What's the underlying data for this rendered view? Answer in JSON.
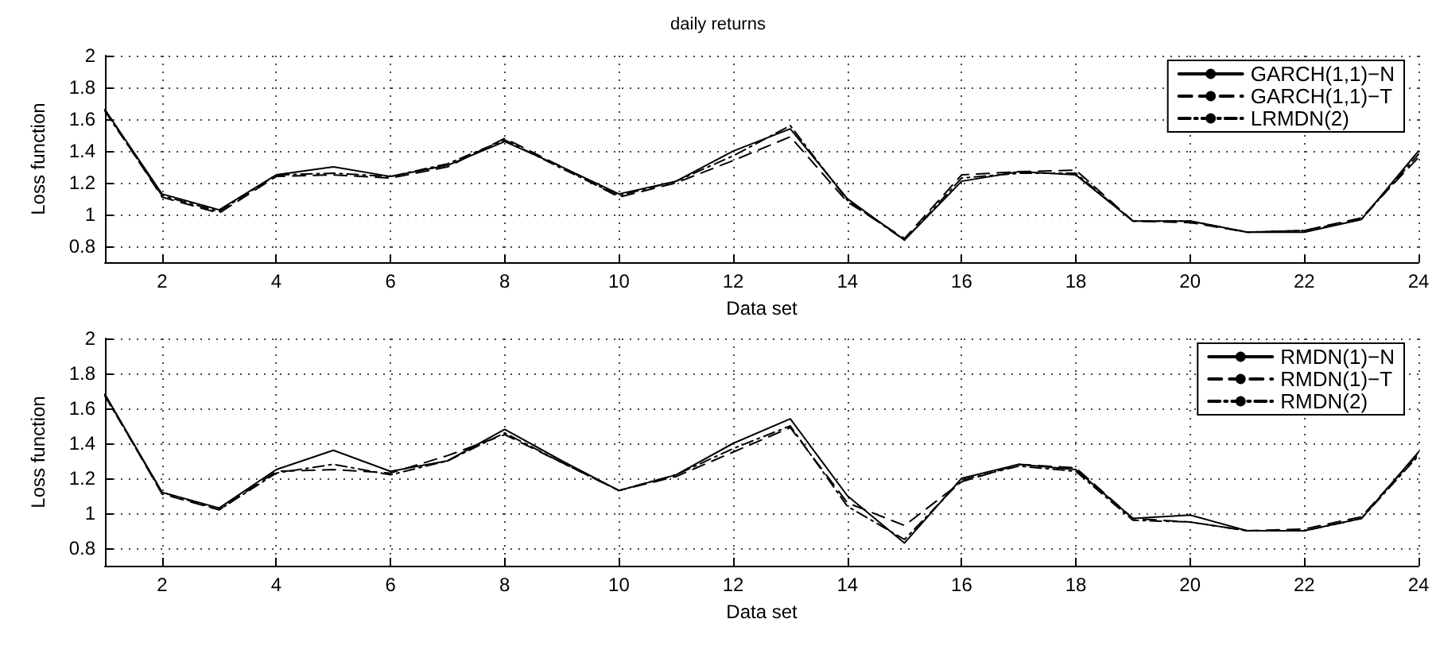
{
  "chart_data": [
    {
      "type": "line",
      "title": "daily returns",
      "xlabel": "Data set",
      "ylabel": "Loss function",
      "x": [
        1,
        2,
        3,
        4,
        5,
        6,
        7,
        8,
        9,
        10,
        11,
        12,
        13,
        14,
        15,
        16,
        17,
        18,
        19,
        20,
        21,
        22,
        23,
        24
      ],
      "xlim": [
        1,
        24
      ],
      "xticks": [
        2,
        4,
        6,
        8,
        10,
        12,
        14,
        16,
        18,
        20,
        22,
        24
      ],
      "ylim": [
        0.7,
        2
      ],
      "yticks": [
        0.8,
        1,
        1.2,
        1.4,
        1.6,
        1.8,
        2
      ],
      "grid": true,
      "legend": "top right",
      "marker": "none",
      "series": [
        {
          "name": "GARCH(1,1)−N",
          "color": "#000000",
          "line_style": "solid",
          "values": [
            1.66,
            1.13,
            1.03,
            1.25,
            1.3,
            1.24,
            1.31,
            1.46,
            1.3,
            1.13,
            1.21,
            1.4,
            1.54,
            1.1,
            0.84,
            1.21,
            1.27,
            1.25,
            0.96,
            0.96,
            0.89,
            0.89,
            0.97,
            1.4
          ]
        },
        {
          "name": "GARCH(1,1)−T",
          "color": "#000000",
          "line_style": "dashed",
          "values": [
            1.66,
            1.11,
            1.01,
            1.24,
            1.25,
            1.23,
            1.3,
            1.48,
            1.3,
            1.11,
            1.2,
            1.34,
            1.49,
            1.08,
            0.85,
            1.25,
            1.27,
            1.28,
            0.96,
            0.95,
            0.89,
            0.9,
            0.98,
            1.36
          ]
        },
        {
          "name": "LRMDN(2)",
          "color": "#000000",
          "line_style": "dotted",
          "values": [
            1.65,
            1.12,
            1.02,
            1.25,
            1.26,
            1.24,
            1.32,
            1.47,
            1.29,
            1.12,
            1.21,
            1.37,
            1.56,
            1.09,
            0.84,
            1.23,
            1.26,
            1.26,
            0.96,
            0.96,
            0.89,
            0.9,
            0.97,
            1.38
          ]
        }
      ]
    },
    {
      "type": "line",
      "xlabel": "Data set",
      "ylabel": "Loss function",
      "x": [
        1,
        2,
        3,
        4,
        5,
        6,
        7,
        8,
        9,
        10,
        11,
        12,
        13,
        14,
        15,
        16,
        17,
        18,
        19,
        20,
        21,
        22,
        23,
        24
      ],
      "xlim": [
        1,
        24
      ],
      "xticks": [
        2,
        4,
        6,
        8,
        10,
        12,
        14,
        16,
        18,
        20,
        22,
        24
      ],
      "ylim": [
        0.7,
        2
      ],
      "yticks": [
        0.8,
        1,
        1.2,
        1.4,
        1.6,
        1.8,
        2
      ],
      "grid": true,
      "legend": "top right",
      "marker": "none",
      "series": [
        {
          "name": "RMDN(1)−N",
          "color": "#000000",
          "line_style": "solid",
          "values": [
            1.68,
            1.12,
            1.03,
            1.25,
            1.36,
            1.24,
            1.3,
            1.48,
            1.3,
            1.13,
            1.22,
            1.4,
            1.54,
            1.1,
            0.83,
            1.2,
            1.28,
            1.25,
            0.97,
            0.99,
            0.9,
            0.9,
            0.97,
            1.35
          ]
        },
        {
          "name": "RMDN(1)−T",
          "color": "#000000",
          "line_style": "dashed",
          "values": [
            1.68,
            1.11,
            1.02,
            1.24,
            1.25,
            1.23,
            1.33,
            1.45,
            1.29,
            1.13,
            1.21,
            1.35,
            1.49,
            1.06,
            0.93,
            1.18,
            1.28,
            1.26,
            0.97,
            0.95,
            0.9,
            0.91,
            0.98,
            1.34
          ]
        },
        {
          "name": "RMDN(2)",
          "color": "#000000",
          "line_style": "dotted",
          "values": [
            1.67,
            1.12,
            1.02,
            1.23,
            1.28,
            1.22,
            1.3,
            1.46,
            1.29,
            1.13,
            1.22,
            1.37,
            1.5,
            1.04,
            0.85,
            1.19,
            1.27,
            1.24,
            0.96,
            0.95,
            0.9,
            0.9,
            0.97,
            1.33
          ]
        }
      ]
    }
  ]
}
